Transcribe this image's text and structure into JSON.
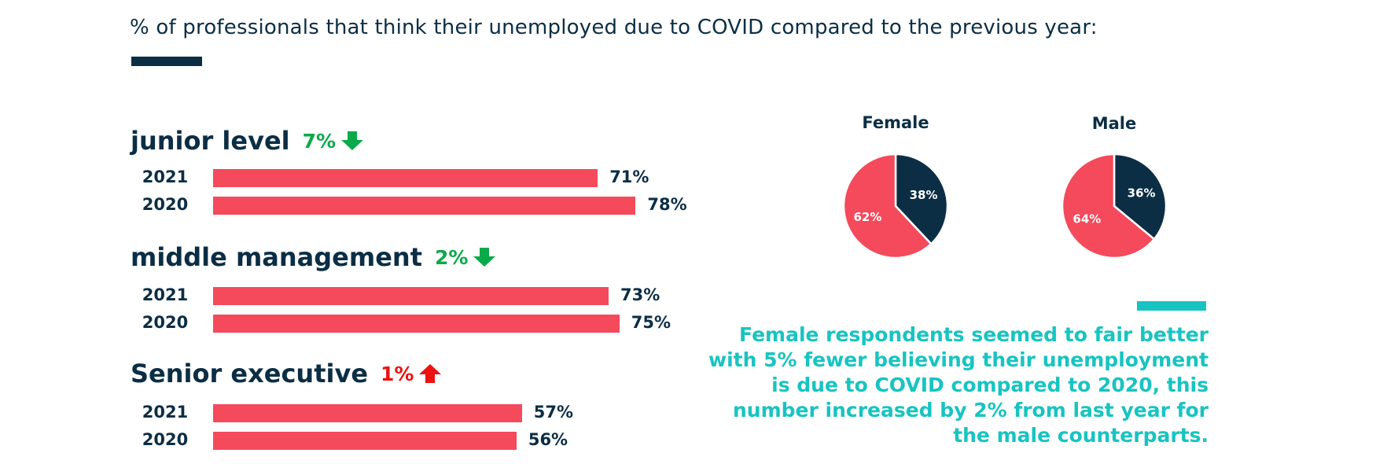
{
  "chart_data": [
    {
      "type": "bar",
      "orientation": "horizontal",
      "title": "% of professionals that think their unemployed due to COVID compared to the previous year:",
      "groups": [
        {
          "name": "junior level",
          "change_label": "7%",
          "direction": "down",
          "bars": [
            {
              "year": "2021",
              "value": 71,
              "label": "71%"
            },
            {
              "year": "2020",
              "value": 78,
              "label": "78%"
            }
          ]
        },
        {
          "name": "middle management",
          "change_label": "2%",
          "direction": "down",
          "bars": [
            {
              "year": "2021",
              "value": 73,
              "label": "73%"
            },
            {
              "year": "2020",
              "value": 75,
              "label": "75%"
            }
          ]
        },
        {
          "name": "Senior executive",
          "change_label": "1%",
          "direction": "up",
          "bars": [
            {
              "year": "2021",
              "value": 57,
              "label": "57%"
            },
            {
              "year": "2020",
              "value": 56,
              "label": "56%"
            }
          ]
        }
      ],
      "xlim": [
        0,
        100
      ]
    },
    {
      "type": "pie",
      "pies": [
        {
          "title": "Female",
          "slices": [
            {
              "value": 38,
              "label": "38%",
              "color": "#0b2e45"
            },
            {
              "value": 62,
              "label": "62%",
              "color": "#f44a5b"
            }
          ]
        },
        {
          "title": "Male",
          "slices": [
            {
              "value": 36,
              "label": "36%",
              "color": "#0b2e45"
            },
            {
              "value": 64,
              "label": "64%",
              "color": "#f44a5b"
            }
          ]
        }
      ]
    }
  ],
  "note": {
    "lines": [
      "Female respondents seemed to fair better",
      "with 5% fewer believing their unemployment",
      "is due to COVID compared to 2020, this",
      "number increased by 2% from last year for",
      "the male counterparts."
    ]
  },
  "colors": {
    "navy": "#0b2e45",
    "bar": "#f44a5b",
    "down": "#0aaa4a",
    "up": "#ee1111",
    "accent": "#17c4c1"
  },
  "icons": {
    "down": "arrow-down-icon",
    "up": "arrow-up-icon"
  }
}
